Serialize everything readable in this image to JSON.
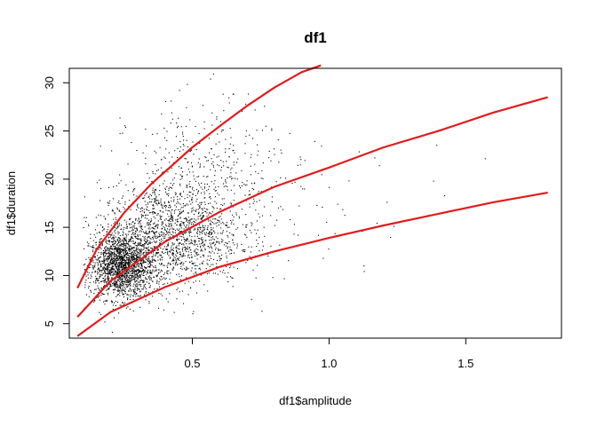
{
  "chart_data": {
    "type": "scatter",
    "title": "df1",
    "xlabel": "df1$amplitude",
    "ylabel": "df1$duration",
    "xlim": [
      0.05,
      1.85
    ],
    "ylim": [
      3.5,
      31.5
    ],
    "xticks": [
      0.5,
      1.0,
      1.5
    ],
    "xtick_labels": [
      "0.5",
      "1.0",
      "1.5"
    ],
    "yticks": [
      5,
      10,
      15,
      20,
      25,
      30
    ],
    "ytick_labels": [
      "5",
      "10",
      "15",
      "20",
      "25",
      "30"
    ],
    "grid": false,
    "legend": "none",
    "point_color": "#000000",
    "curve_color": "#e31a1c",
    "curves": [
      {
        "x": [
          0.08,
          0.15,
          0.25,
          0.35,
          0.5,
          0.6,
          0.7,
          0.8,
          0.9,
          0.97
        ],
        "y": [
          8.7,
          12.7,
          16.5,
          19.5,
          23.3,
          25.5,
          27.6,
          29.5,
          31.1,
          31.8
        ]
      },
      {
        "x": [
          0.08,
          0.2,
          0.4,
          0.6,
          0.8,
          1.0,
          1.2,
          1.4,
          1.6,
          1.8
        ],
        "y": [
          5.7,
          9.4,
          13.5,
          16.6,
          19.2,
          21.2,
          23.3,
          25.0,
          26.9,
          28.5
        ]
      },
      {
        "x": [
          0.08,
          0.2,
          0.4,
          0.6,
          0.8,
          1.0,
          1.2,
          1.4,
          1.6,
          1.8
        ],
        "y": [
          3.7,
          6.2,
          8.8,
          10.9,
          12.5,
          13.9,
          15.2,
          16.4,
          17.6,
          18.6
        ]
      }
    ],
    "scatter_clusters": [
      {
        "n": 1800,
        "x_mean": 0.24,
        "x_sd": 0.06,
        "y_mean": 11.0,
        "y_sd": 1.7
      },
      {
        "n": 1500,
        "x_mean": 0.42,
        "x_sd": 0.13,
        "y_mean": 14.2,
        "y_sd": 2.6
      },
      {
        "n": 450,
        "x_mean": 0.55,
        "x_sd": 0.14,
        "y_mean": 20.0,
        "y_sd": 4.0
      },
      {
        "n": 60,
        "x_mean": 0.95,
        "x_sd": 0.25,
        "y_mean": 18.0,
        "y_sd": 3.0
      }
    ]
  }
}
